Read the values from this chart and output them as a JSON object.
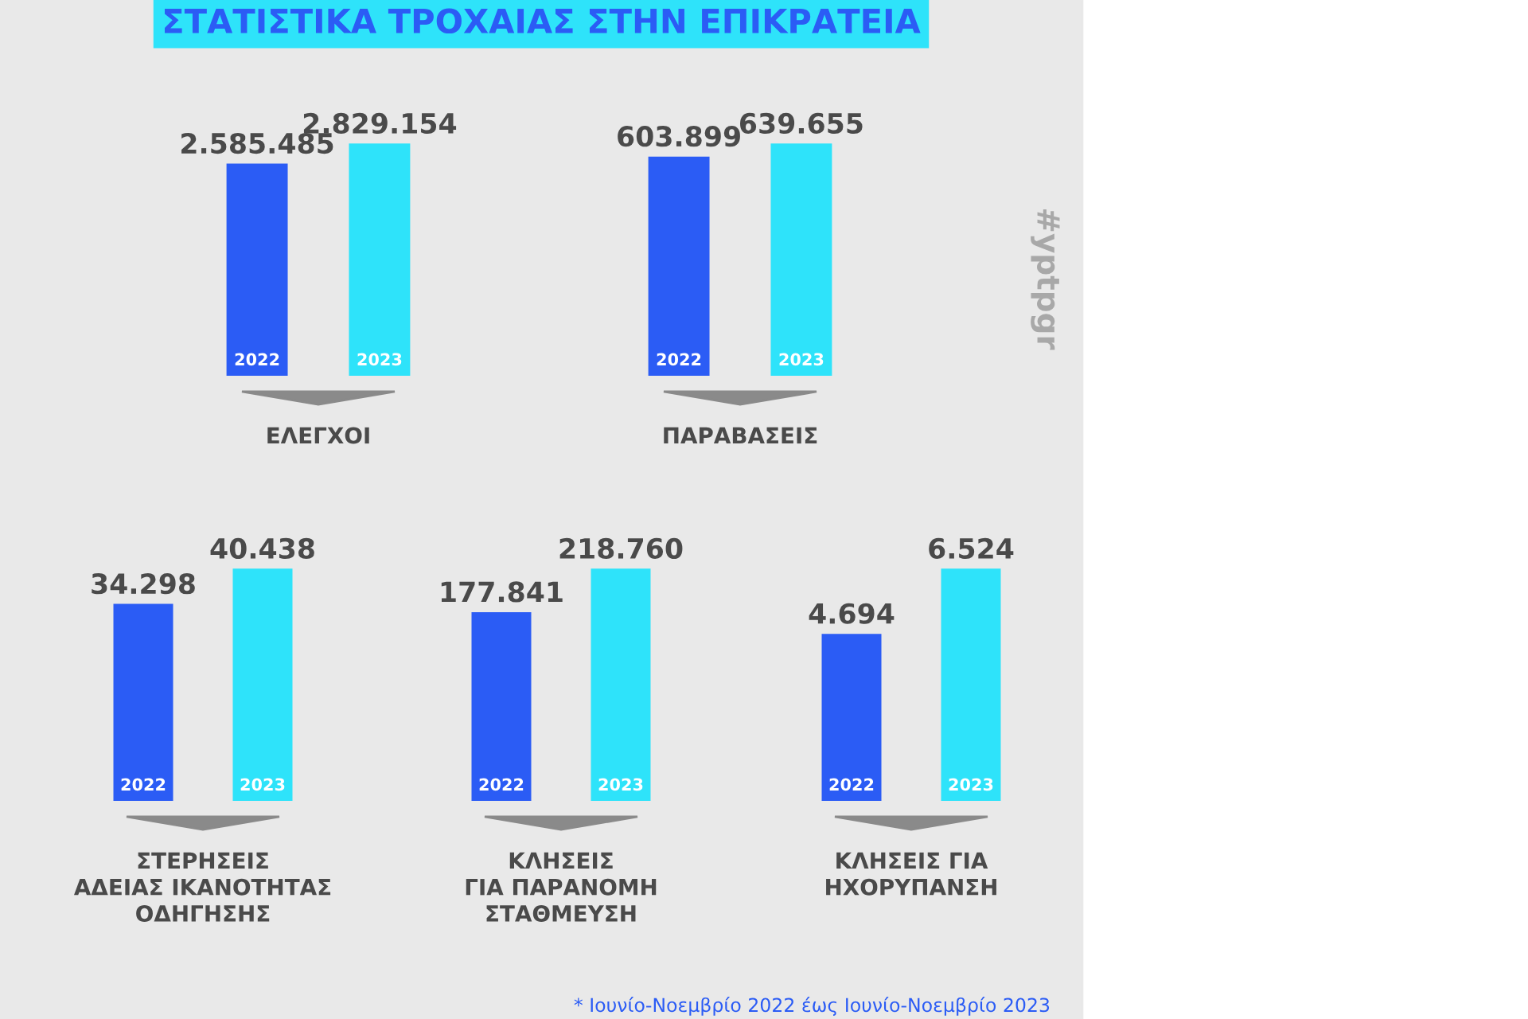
{
  "chart_data": [
    {
      "type": "bar",
      "title": "ΣΤΑΤΙΣΤΙΚΑ ΤΡΟΧΑΙΑΣ ΣΤΗΝ ΕΠΙΚΡΑΤΕΙΑ",
      "xlabel": "ΕΛΕΓΧΟΙ",
      "categories": [
        "2022",
        "2023"
      ],
      "values": [
        2585485,
        2829154
      ],
      "value_labels": [
        "2.585.485",
        "2.829.154"
      ],
      "colors": [
        "#2b5cf5",
        "#2ee3fa"
      ]
    },
    {
      "type": "bar",
      "xlabel": "ΠΑΡΑΒΑΣΕΙΣ",
      "categories": [
        "2022",
        "2023"
      ],
      "values": [
        603899,
        639655
      ],
      "value_labels": [
        "603.899",
        "639.655"
      ],
      "colors": [
        "#2b5cf5",
        "#2ee3fa"
      ],
      "annotations": [
        "#yptpgr"
      ]
    },
    {
      "type": "bar",
      "xlabel": "ΣΤΕΡΗΣΕΙΣ\nΑΔΕΙΑΣ ΙΚΑΝΟΤΗΤΑΣ\nΟΔΗΓΗΣΗΣ",
      "categories": [
        "2022",
        "2023"
      ],
      "values": [
        34298,
        40438
      ],
      "value_labels": [
        "34.298",
        "40.438"
      ],
      "colors": [
        "#2b5cf5",
        "#2ee3fa"
      ]
    },
    {
      "type": "bar",
      "xlabel": "ΚΛΗΣΕΙΣ\nΓΙΑ ΠΑΡΑΝΟΜΗ\nΣΤΑΘΜΕΥΣΗ",
      "categories": [
        "2022",
        "2023"
      ],
      "values": [
        177841,
        218760
      ],
      "value_labels": [
        "177.841",
        "218.760"
      ],
      "colors": [
        "#2b5cf5",
        "#2ee3fa"
      ]
    },
    {
      "type": "bar",
      "xlabel": "ΚΛΗΣΕΙΣ ΓΙΑ\nΗΧΟΡΥΠΑΝΣΗ",
      "categories": [
        "2022",
        "2023"
      ],
      "values": [
        4694,
        6524
      ],
      "value_labels": [
        "4.694",
        "6.524"
      ],
      "colors": [
        "#2b5cf5",
        "#2ee3fa"
      ],
      "annotations": [
        "* Ιουνίο-Νοεμβρίο 2022 έως Ιουνίο-Νοεμβρίο 2023"
      ]
    }
  ]
}
